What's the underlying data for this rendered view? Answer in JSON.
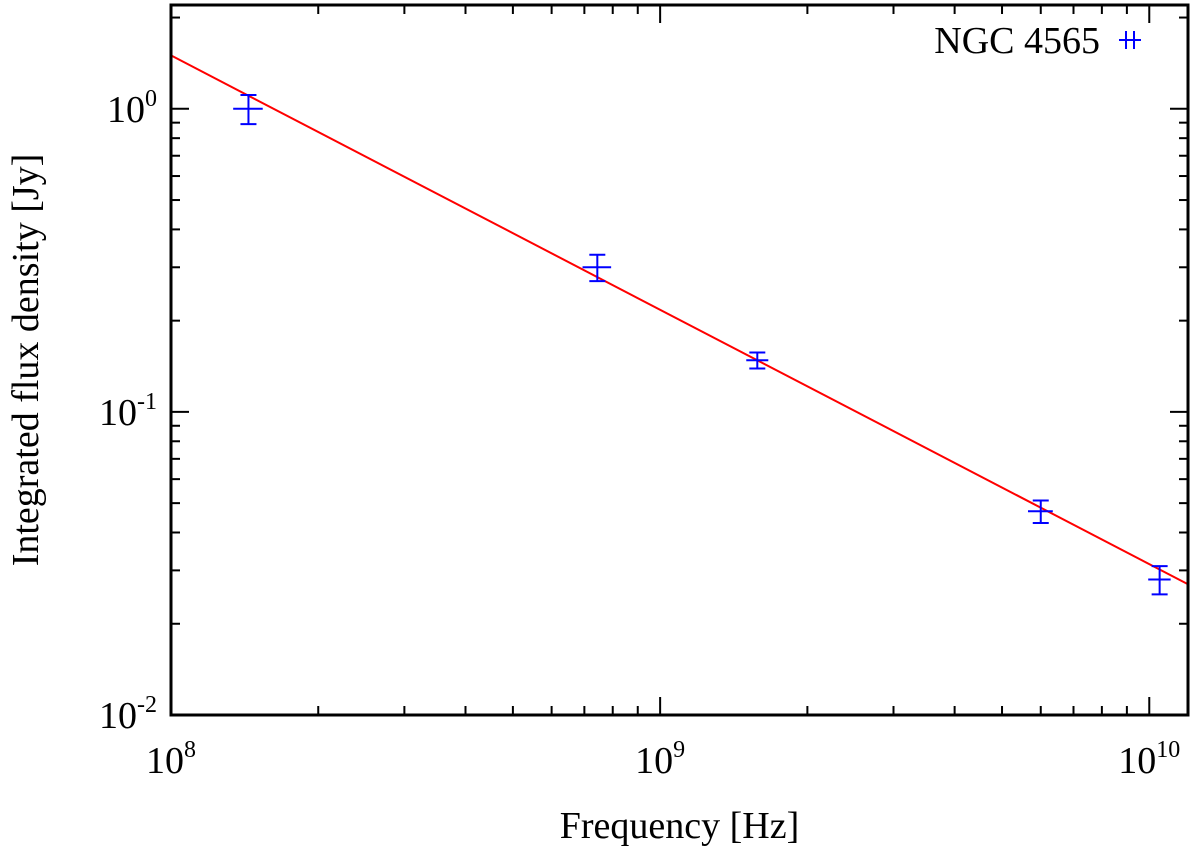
{
  "chart_data": {
    "type": "scatter",
    "title": "",
    "xlabel": "Frequency [Hz]",
    "ylabel": "Integrated flux density [Jy]",
    "xscale": "log",
    "yscale": "log",
    "xlim": [
      100000000.0,
      12000000000.0
    ],
    "ylim": [
      0.01,
      2.2
    ],
    "x_major_ticks": [
      {
        "value": 100000000.0,
        "base": "10",
        "exp": "8"
      },
      {
        "value": 1000000000.0,
        "base": "10",
        "exp": "9"
      },
      {
        "value": 10000000000.0,
        "base": "10",
        "exp": "10"
      }
    ],
    "y_major_ticks": [
      {
        "value": 1,
        "base": "10",
        "exp": "0"
      },
      {
        "value": 0.1,
        "base": "10",
        "exp": "-1"
      },
      {
        "value": 0.01,
        "base": "10",
        "exp": "-2"
      }
    ],
    "series": [
      {
        "name": "NGC 4565",
        "color": "#0000ff",
        "marker": "plus",
        "points": [
          {
            "x": 144000000.0,
            "y": 1.0,
            "yerr": 0.11,
            "xerr": 10000000.0
          },
          {
            "x": 744000000.0,
            "y": 0.3,
            "yerr": 0.03,
            "xerr": 50000000.0
          },
          {
            "x": 1580000000.0,
            "y": 0.148,
            "yerr": 0.009,
            "xerr": 80000000.0
          },
          {
            "x": 6000000000.0,
            "y": 0.047,
            "yerr": 0.004,
            "xerr": 350000000.0
          },
          {
            "x": 10500000000.0,
            "y": 0.028,
            "yerr": 0.003,
            "xerr": 550000000.0
          }
        ]
      }
    ],
    "fit_line": {
      "color": "#ff0000",
      "x": [
        100000000.0,
        12000000000.0
      ],
      "y": [
        1.5,
        0.027
      ]
    },
    "legend": {
      "position": "top-right",
      "entries": [
        "NGC 4565"
      ]
    }
  }
}
